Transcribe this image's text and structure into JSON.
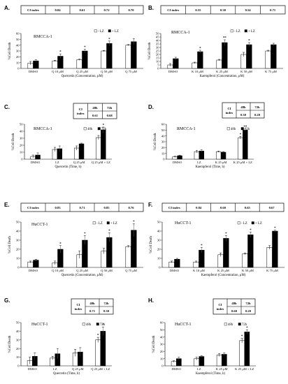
{
  "chart_data": [
    {
      "panel": "A.",
      "type": "bar",
      "title": "RMCCA-1",
      "xlabel": "Quercetin (Concentration, μM)",
      "ylabel": "%Cell Death",
      "ylim": [
        0,
        60
      ],
      "yticks": [
        "0",
        "10",
        "20",
        "30",
        "40",
        "50",
        "60"
      ],
      "categories": [
        "DMSO",
        "Q 10 μM",
        "Q 25 μM",
        "Q 50 μM",
        "Q 75 μM"
      ],
      "series": [
        {
          "name": "- LZ",
          "values": [
            9,
            13,
            15,
            30,
            40
          ],
          "errors": [
            3,
            1,
            1,
            1,
            1
          ]
        },
        {
          "name": "+ LZ",
          "values": [
            13,
            21,
            30,
            43,
            46
          ],
          "errors": [
            2,
            4,
            3,
            4,
            5
          ]
        }
      ],
      "significance": [
        "",
        "*",
        "*",
        "*",
        ""
      ],
      "ci_table": {
        "header": [
          "CI index"
        ],
        "columns": [
          "0.84",
          "0.61",
          "0.72",
          "0.70"
        ]
      }
    },
    {
      "panel": "B.",
      "type": "bar",
      "title": "RMCCA-1",
      "xlabel": "Kaempferol (Concentration, μM)",
      "ylabel": "%Cell Death",
      "ylim": [
        0,
        50
      ],
      "yticks": [
        "0",
        "5",
        "10",
        "15",
        "20",
        "25",
        "30",
        "35",
        "40",
        "45",
        "50"
      ],
      "categories": [
        "DMSO",
        "K 10 μM",
        "K 25 μM",
        "K 50 μM",
        "K 75 μM"
      ],
      "series": [
        {
          "name": "- LZ",
          "values": [
            5,
            8,
            12,
            20,
            25
          ],
          "errors": [
            2,
            1,
            1,
            3,
            1
          ]
        },
        {
          "name": "+ LZ",
          "values": [
            14,
            24,
            37,
            34,
            34
          ],
          "errors": [
            2,
            2,
            4,
            3,
            2
          ]
        }
      ],
      "significance": [
        "",
        "*",
        "**",
        "*",
        ""
      ],
      "ci_table": {
        "header": [
          "CI index"
        ],
        "columns": [
          "0.55",
          "0.30",
          "0.54",
          "0.71"
        ]
      }
    },
    {
      "panel": "C.",
      "type": "bar",
      "title": "RMCCA-1",
      "xlabel": "Quercetin (Time, h)",
      "ylabel": "%Cell Death",
      "ylim": [
        0,
        50
      ],
      "yticks": [
        "0",
        "10",
        "20",
        "30",
        "40",
        "50"
      ],
      "categories": [
        "DMSO",
        "LZ",
        "Q 25 μM",
        "Q 25 μM + LZ"
      ],
      "series": [
        {
          "name": "48h",
          "values": [
            4,
            14,
            16,
            31
          ],
          "errors": [
            2,
            3,
            3,
            3
          ]
        },
        {
          "name": "72h",
          "values": [
            6,
            15,
            22,
            42
          ],
          "errors": [
            3,
            4,
            1,
            4
          ]
        }
      ],
      "significance": [
        "",
        "",
        "",
        "*"
      ],
      "ci_table": {
        "header": [
          "CI index",
          "48h",
          "72h"
        ],
        "columns": [
          "0.61",
          "0.68"
        ]
      }
    },
    {
      "panel": "D.",
      "type": "bar",
      "title": "RMCCA-1",
      "xlabel": "Kaempferol (Time, h)",
      "ylabel": "%Cell Death",
      "ylim": [
        0,
        60
      ],
      "yticks": [
        "0",
        "10",
        "20",
        "30",
        "40",
        "50",
        "60"
      ],
      "categories": [
        "DMSO",
        "LZ",
        "K 25 μM",
        "K 25 μM + LZ"
      ],
      "series": [
        {
          "name": "48h",
          "values": [
            4,
            13,
            13,
            37
          ],
          "errors": [
            1,
            2,
            1,
            2
          ]
        },
        {
          "name": "72h",
          "values": [
            6,
            14,
            12,
            50
          ],
          "errors": [
            1,
            2,
            1,
            2
          ]
        }
      ],
      "significance": [
        "",
        "",
        "",
        "*|**"
      ],
      "ci_table": {
        "header": [
          "CI index",
          "48h",
          "72h"
        ],
        "columns": [
          "0.30",
          "0.20"
        ]
      }
    },
    {
      "panel": "E.",
      "type": "bar",
      "title": "HuCCT-1",
      "xlabel": "Quercetin (Concentration, μM)",
      "ylabel": "%Cell Death",
      "ylim": [
        0,
        50
      ],
      "yticks": [
        "0",
        "10",
        "20",
        "30",
        "40",
        "50"
      ],
      "categories": [
        "DMSO",
        "Q 10 μM",
        "Q 25 μM",
        "Q 50 μM",
        "Q 75 μM"
      ],
      "series": [
        {
          "name": "- LZ",
          "values": [
            6,
            5,
            14,
            18,
            23
          ],
          "errors": [
            1,
            2,
            4,
            3,
            1
          ]
        },
        {
          "name": "+ LZ",
          "values": [
            8,
            20,
            30,
            33,
            41
          ],
          "errors": [
            1,
            4,
            5,
            5,
            7
          ]
        }
      ],
      "significance": [
        "",
        "*",
        "*",
        "*",
        "*"
      ],
      "ci_table": {
        "header": [
          "CI index"
        ],
        "columns": [
          "0.83",
          "0.71",
          "0.85",
          "0.76"
        ]
      }
    },
    {
      "panel": "F.",
      "type": "bar",
      "title": "HuCCT-1",
      "xlabel": "Kaempferol (Concentration, μM)",
      "ylabel": "%Cell Death",
      "ylim": [
        0,
        50
      ],
      "yticks": [
        "0",
        "10",
        "20",
        "30",
        "40",
        "50"
      ],
      "categories": [
        "DMSO",
        "K 10 μM",
        "K 25 μM",
        "K 50 μM",
        "K 75 μM"
      ],
      "series": [
        {
          "name": "- LZ",
          "values": [
            6,
            6,
            14,
            15,
            22
          ],
          "errors": [
            1,
            1,
            2,
            1,
            2
          ]
        },
        {
          "name": "+ LZ",
          "values": [
            9,
            19,
            32,
            36,
            40
          ],
          "errors": [
            1,
            3,
            3,
            3,
            1
          ]
        }
      ],
      "significance": [
        "",
        "*",
        "*",
        "*",
        "*"
      ],
      "ci_table": {
        "header": [
          "CI index"
        ],
        "columns": [
          "0.84",
          "0.60",
          "0.65",
          "0.67"
        ]
      }
    },
    {
      "panel": "G.",
      "type": "bar",
      "title": "HuCCT-1",
      "xlabel": "Quercetin (Time, h)",
      "ylabel": "%Cell Death",
      "ylim": [
        0,
        50
      ],
      "yticks": [
        "0",
        "10",
        "20",
        "30",
        "40",
        "50"
      ],
      "categories": [
        "DMSO",
        "LZ",
        "Q 25 μM",
        "Q 25 μM + LZ"
      ],
      "series": [
        {
          "name": "48h",
          "values": [
            6,
            9,
            15,
            30
          ],
          "errors": [
            4,
            2,
            4,
            3
          ]
        },
        {
          "name": "72h",
          "values": [
            11,
            14,
            16,
            40
          ],
          "errors": [
            4,
            6,
            5,
            5
          ]
        }
      ],
      "significance": [
        "",
        "",
        "",
        "*|*"
      ],
      "ci_table": {
        "header": [
          "CI index",
          "48h",
          "72h"
        ],
        "columns": [
          "0.71",
          "0.30"
        ]
      }
    },
    {
      "panel": "H.",
      "type": "bar",
      "title": "HuCCT-1",
      "xlabel": "Kaempferol (Time, h)",
      "ylabel": "%Cell Death",
      "ylim": [
        0,
        60
      ],
      "yticks": [
        "0",
        "10",
        "20",
        "30",
        "40",
        "50",
        "60"
      ],
      "categories": [
        "DMSO",
        "LZ",
        "K 25 μM",
        "K 25 μM + LZ"
      ],
      "series": [
        {
          "name": "48h",
          "values": [
            6,
            10,
            15,
            35
          ],
          "errors": [
            1,
            2,
            2,
            3
          ]
        },
        {
          "name": "72h",
          "values": [
            10,
            13,
            16,
            47
          ],
          "errors": [
            2,
            1,
            2,
            3
          ]
        }
      ],
      "significance": [
        "",
        "",
        "",
        "*|*"
      ],
      "ci_table": {
        "header": [
          "CI index",
          "48h",
          "72h"
        ],
        "columns": [
          "0.60",
          "0.20"
        ]
      }
    }
  ]
}
